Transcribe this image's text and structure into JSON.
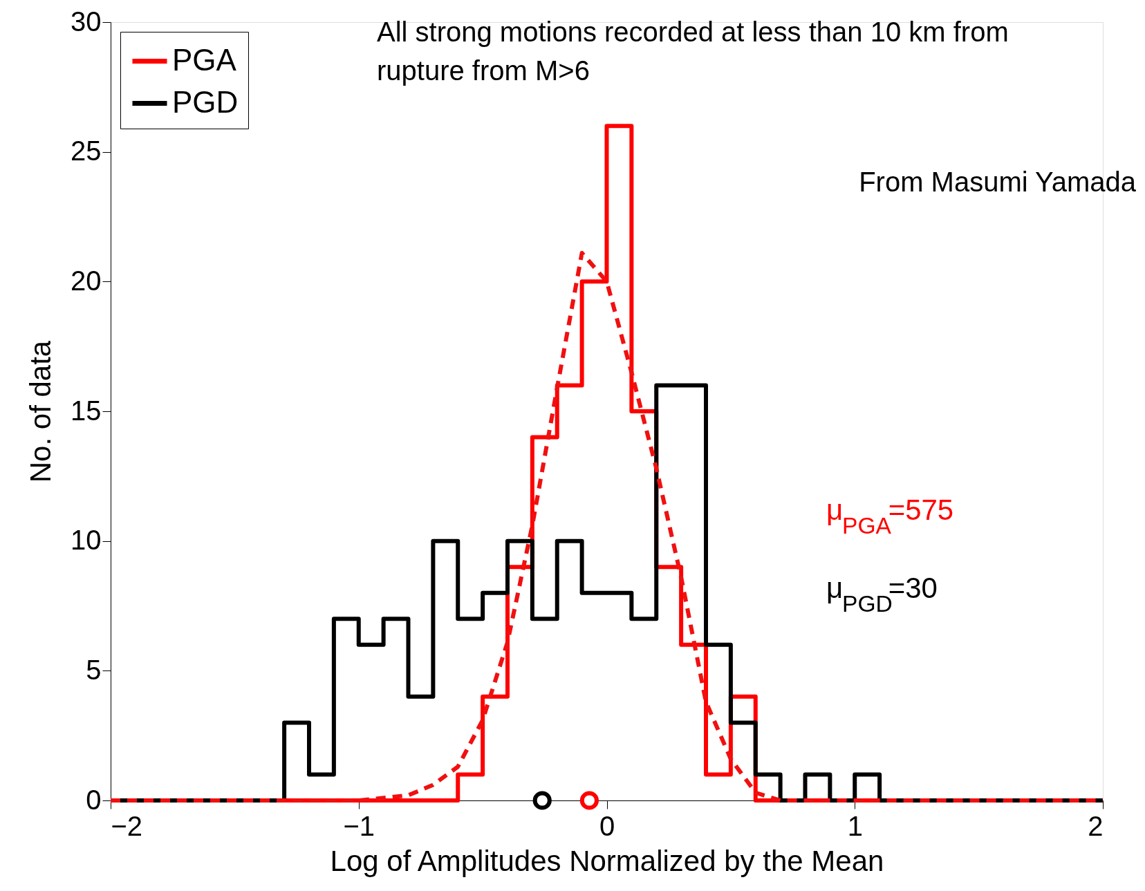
{
  "chart_data": {
    "type": "histogram",
    "xlabel": "Log of Amplitudes Normalized by the Mean",
    "ylabel": "No. of data",
    "bins": [
      -2.0,
      -1.9,
      -1.8,
      -1.7,
      -1.6,
      -1.5,
      -1.4,
      -1.3,
      -1.2,
      -1.1,
      -1.0,
      -0.9,
      -0.8,
      -0.7,
      -0.6,
      -0.5,
      -0.4,
      -0.3,
      -0.2,
      -0.1,
      0.0,
      0.1,
      0.2,
      0.3,
      0.4,
      0.5,
      0.6,
      0.7,
      0.8,
      0.9,
      1.0,
      1.1,
      1.2,
      1.3,
      1.4,
      1.5,
      1.6,
      1.7,
      1.8,
      1.9,
      2.0
    ],
    "series": [
      {
        "name": "PGA",
        "color": "#ff0000",
        "values": [
          0,
          0,
          0,
          0,
          0,
          0,
          0,
          0,
          0,
          0,
          0,
          0,
          0,
          0,
          1,
          4,
          9,
          14,
          16,
          20,
          26,
          15,
          9,
          6,
          1,
          4,
          0,
          0,
          0,
          0,
          0,
          0,
          0,
          0,
          0,
          0,
          0,
          0,
          0,
          0
        ]
      },
      {
        "name": "PGD",
        "color": "#000000",
        "values": [
          0,
          0,
          0,
          0,
          0,
          0,
          0,
          3,
          1,
          7,
          6,
          7,
          4,
          10,
          7,
          8,
          10,
          7,
          10,
          8,
          8,
          7,
          16,
          16,
          6,
          3,
          1,
          0,
          1,
          0,
          1,
          0,
          0,
          0,
          0,
          0,
          0,
          0,
          0,
          0
        ]
      },
      {
        "type": "line",
        "color": "#f01010",
        "line_style": "dashed",
        "x": [
          -2,
          -1,
          -0.8,
          -0.7,
          -0.6,
          -0.5,
          -0.4,
          -0.3,
          -0.2,
          -0.1,
          0,
          0.1,
          0.2,
          0.3,
          0.4,
          0.5,
          0.6,
          0.7,
          1,
          2
        ],
        "values": [
          0,
          0,
          0.2,
          0.6,
          1.3,
          3.1,
          6.1,
          10.6,
          15.9,
          21.1,
          20.0,
          16.5,
          12.8,
          8.6,
          3.8,
          1.6,
          0.3,
          0,
          0,
          0
        ]
      },
      {
        "type": "scatter",
        "color": "#000000",
        "marker": "circle",
        "x": [
          -0.26
        ],
        "values": [
          0
        ]
      },
      {
        "type": "scatter",
        "color": "#ff0000",
        "marker": "circle",
        "x": [
          -0.07
        ],
        "values": [
          0
        ]
      }
    ],
    "annotations": [
      "All strong motions recorded at less than 10 km from rupture from M>6",
      "From Masumi Yamada",
      "μ$_{PGA}$=575",
      "μ$_{PGD}$=30"
    ],
    "xlim": [
      -2,
      2
    ],
    "xticks": [
      -2,
      -1,
      0,
      1,
      2
    ],
    "ylim": [
      0,
      30
    ],
    "yticks": [
      0,
      5,
      10,
      15,
      20,
      25,
      30
    ],
    "grid": false,
    "legend": "top left"
  }
}
